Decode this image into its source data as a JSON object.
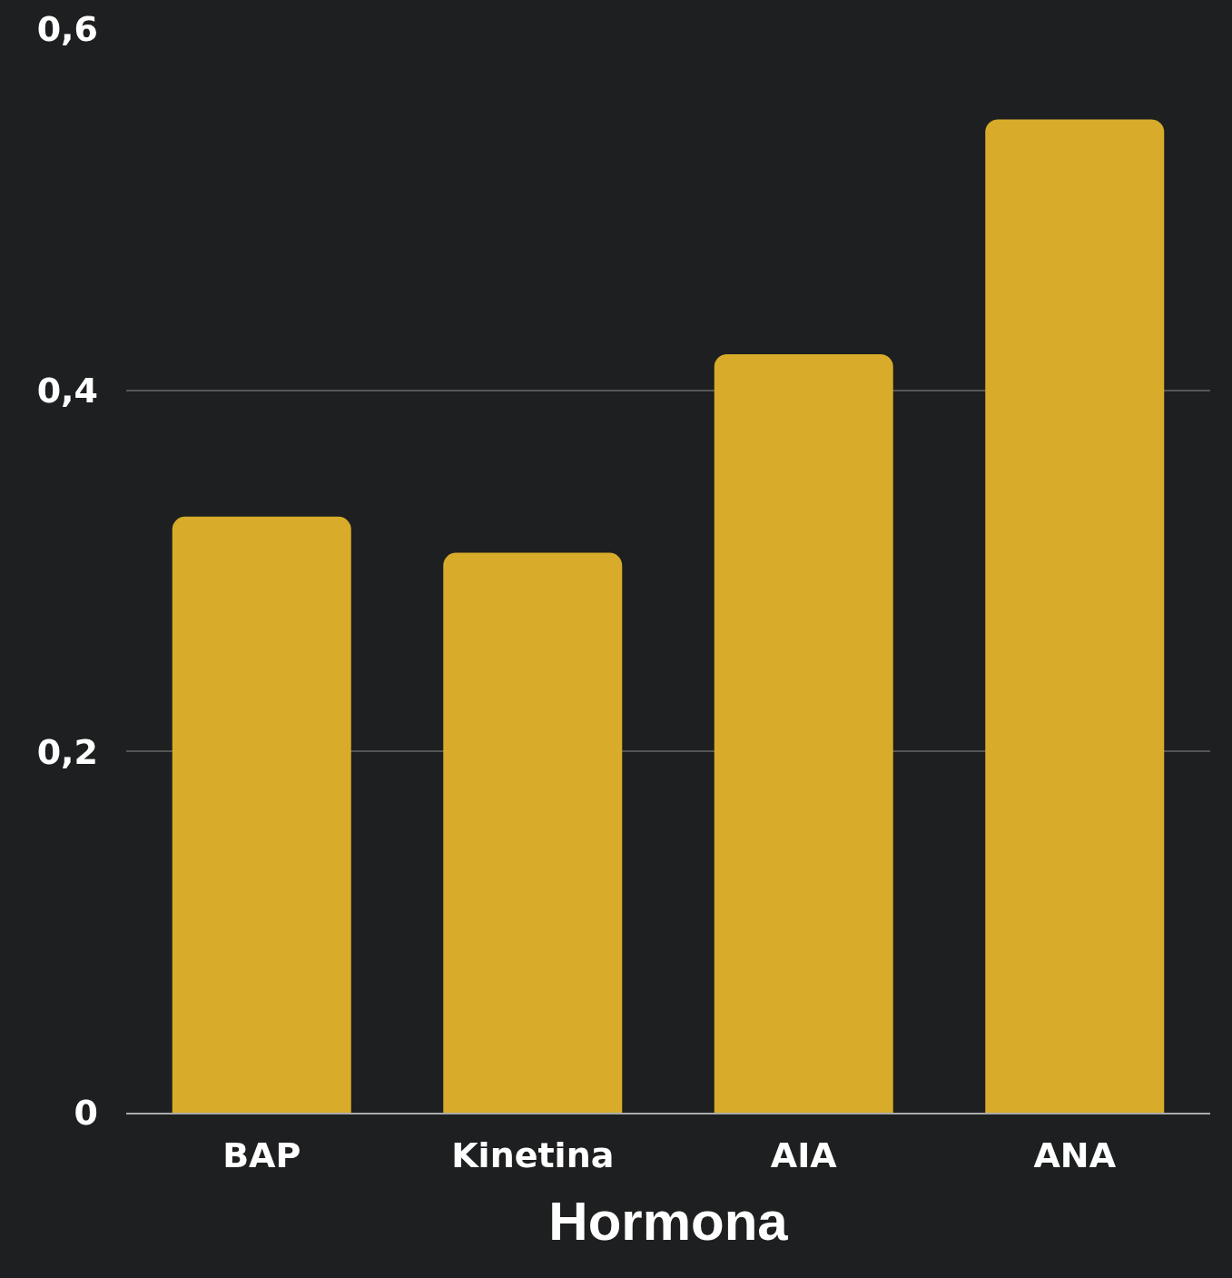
{
  "chart_data": {
    "type": "bar",
    "xlabel": "Hormona",
    "categories": [
      "BAP",
      "Kinetina",
      "AIA",
      "ANA"
    ],
    "values": [
      0.33,
      0.31,
      0.42,
      0.55
    ],
    "color": "#d8ac2a",
    "ylim": [
      0,
      0.6
    ],
    "yticks": [
      {
        "value": 0,
        "label": "0"
      },
      {
        "value": 0.2,
        "label": "0,2"
      },
      {
        "value": 0.4,
        "label": "0,4"
      },
      {
        "value": 0.6,
        "label": "0,6"
      }
    ],
    "grid": "y"
  }
}
